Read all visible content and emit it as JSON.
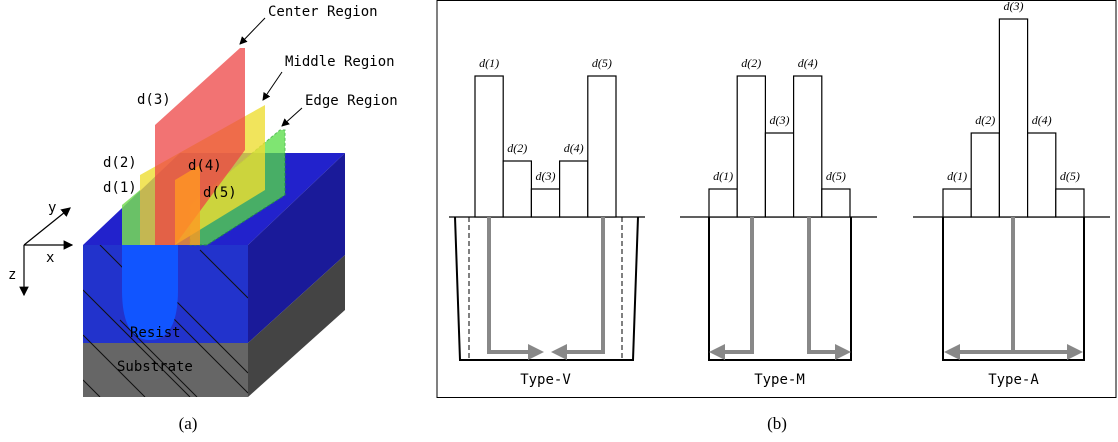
{
  "panel_a": {
    "region_labels": [
      "Center Region",
      "Middle Region",
      "Edge Region"
    ],
    "d_labels": [
      "d(3)",
      "d(2)",
      "d(4)",
      "d(1)",
      "d(5)"
    ],
    "axes": [
      "y",
      "x",
      "z"
    ],
    "layers": [
      "Resist",
      "Substrate"
    ],
    "caption": "(a)"
  },
  "panel_b": {
    "types": [
      {
        "name": "Type-V",
        "d_labels": [
          "d(1)",
          "d(2)",
          "d(3)",
          "d(4)",
          "d(5)"
        ]
      },
      {
        "name": "Type-M",
        "d_labels": [
          "d(1)",
          "d(2)",
          "d(3)",
          "d(4)",
          "d(5)"
        ]
      },
      {
        "name": "Type-A",
        "d_labels": [
          "d(1)",
          "d(2)",
          "d(3)",
          "d(4)",
          "d(5)"
        ]
      }
    ],
    "caption": "(b)"
  }
}
